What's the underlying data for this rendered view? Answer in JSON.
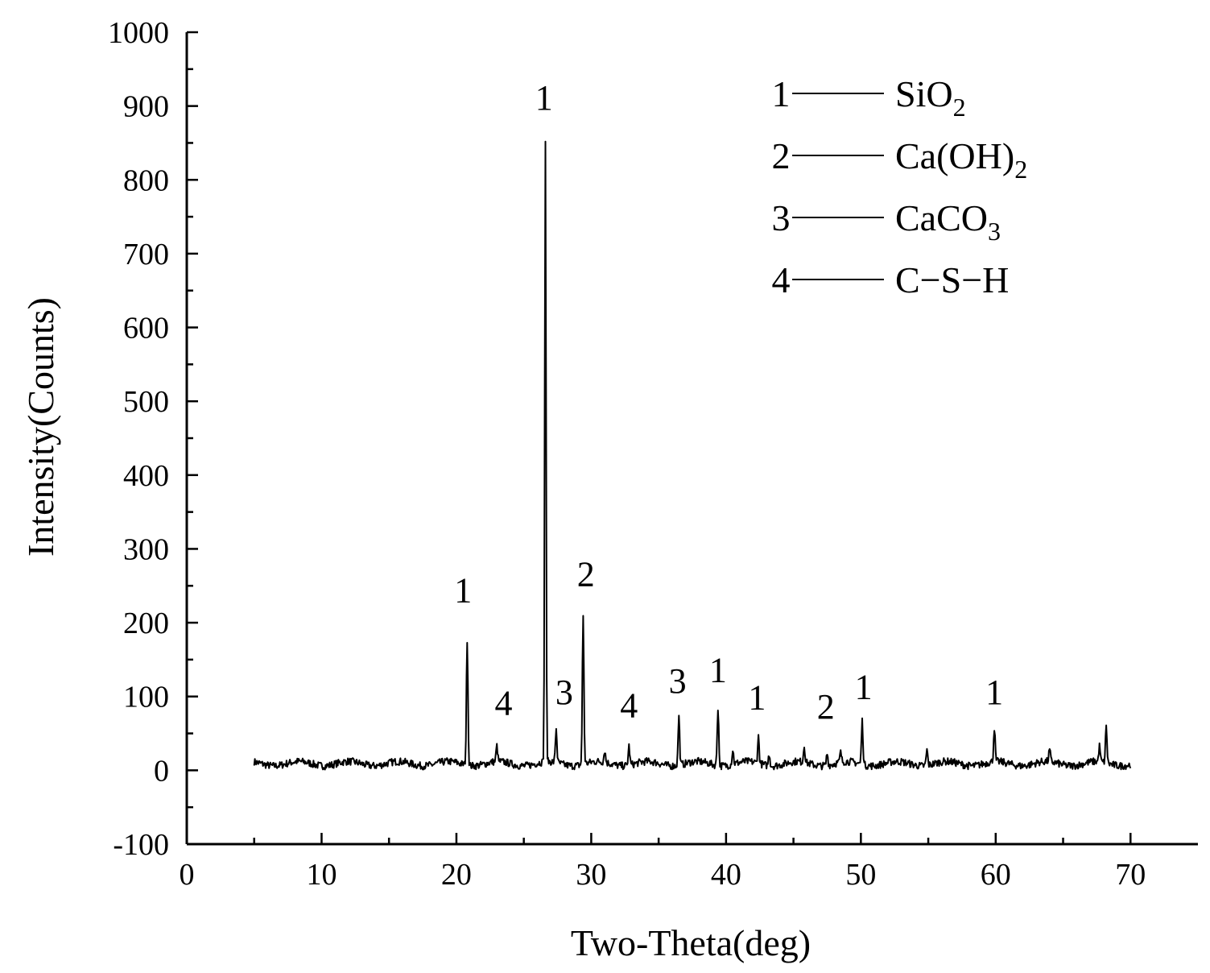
{
  "chart_data": {
    "type": "line",
    "title": "",
    "xlabel": "Two-Theta(deg)",
    "ylabel": "Intensity(Counts)",
    "xlim": [
      0,
      75
    ],
    "ylim": [
      -100,
      1000
    ],
    "x_ticks": [
      0,
      10,
      20,
      30,
      40,
      50,
      60,
      70
    ],
    "y_ticks": [
      -100,
      0,
      100,
      200,
      300,
      400,
      500,
      600,
      700,
      800,
      900,
      1000
    ],
    "grid": false,
    "legend": {
      "placement": "top-right",
      "entries": [
        {
          "number": "1",
          "formula": "SiO",
          "subscript": "2"
        },
        {
          "number": "2",
          "formula": "Ca(OH)",
          "subscript": "2"
        },
        {
          "number": "3",
          "formula": "CaCO",
          "subscript": "3"
        },
        {
          "number": "4",
          "formula": "C−S−H",
          "subscript": ""
        }
      ]
    },
    "series": [
      {
        "baseline": 9,
        "range": [
          5,
          70
        ],
        "peaks": [
          {
            "x": 20.8,
            "y": 180
          },
          {
            "x": 23.0,
            "y": 30
          },
          {
            "x": 26.6,
            "y": 850
          },
          {
            "x": 27.4,
            "y": 55
          },
          {
            "x": 29.4,
            "y": 210
          },
          {
            "x": 31.0,
            "y": 25
          },
          {
            "x": 32.8,
            "y": 35
          },
          {
            "x": 36.5,
            "y": 75
          },
          {
            "x": 39.4,
            "y": 88
          },
          {
            "x": 40.5,
            "y": 28
          },
          {
            "x": 42.4,
            "y": 45
          },
          {
            "x": 43.2,
            "y": 25
          },
          {
            "x": 45.8,
            "y": 32
          },
          {
            "x": 47.5,
            "y": 25
          },
          {
            "x": 48.5,
            "y": 22
          },
          {
            "x": 50.1,
            "y": 68
          },
          {
            "x": 54.9,
            "y": 30
          },
          {
            "x": 59.9,
            "y": 55
          },
          {
            "x": 64.0,
            "y": 25
          },
          {
            "x": 67.7,
            "y": 30
          },
          {
            "x": 68.2,
            "y": 58
          }
        ]
      }
    ],
    "annotations": [
      {
        "label": "1",
        "x": 20.5,
        "y": 228
      },
      {
        "label": "4",
        "x": 23.5,
        "y": 75
      },
      {
        "label": "1",
        "x": 26.5,
        "y": 895
      },
      {
        "label": "3",
        "x": 28.0,
        "y": 90
      },
      {
        "label": "2",
        "x": 29.6,
        "y": 250
      },
      {
        "label": "4",
        "x": 32.8,
        "y": 72
      },
      {
        "label": "3",
        "x": 36.4,
        "y": 105
      },
      {
        "label": "1",
        "x": 39.4,
        "y": 120
      },
      {
        "label": "1",
        "x": 42.3,
        "y": 83
      },
      {
        "label": "2",
        "x": 47.4,
        "y": 70
      },
      {
        "label": "1",
        "x": 50.2,
        "y": 97
      },
      {
        "label": "1",
        "x": 59.9,
        "y": 90
      }
    ]
  }
}
